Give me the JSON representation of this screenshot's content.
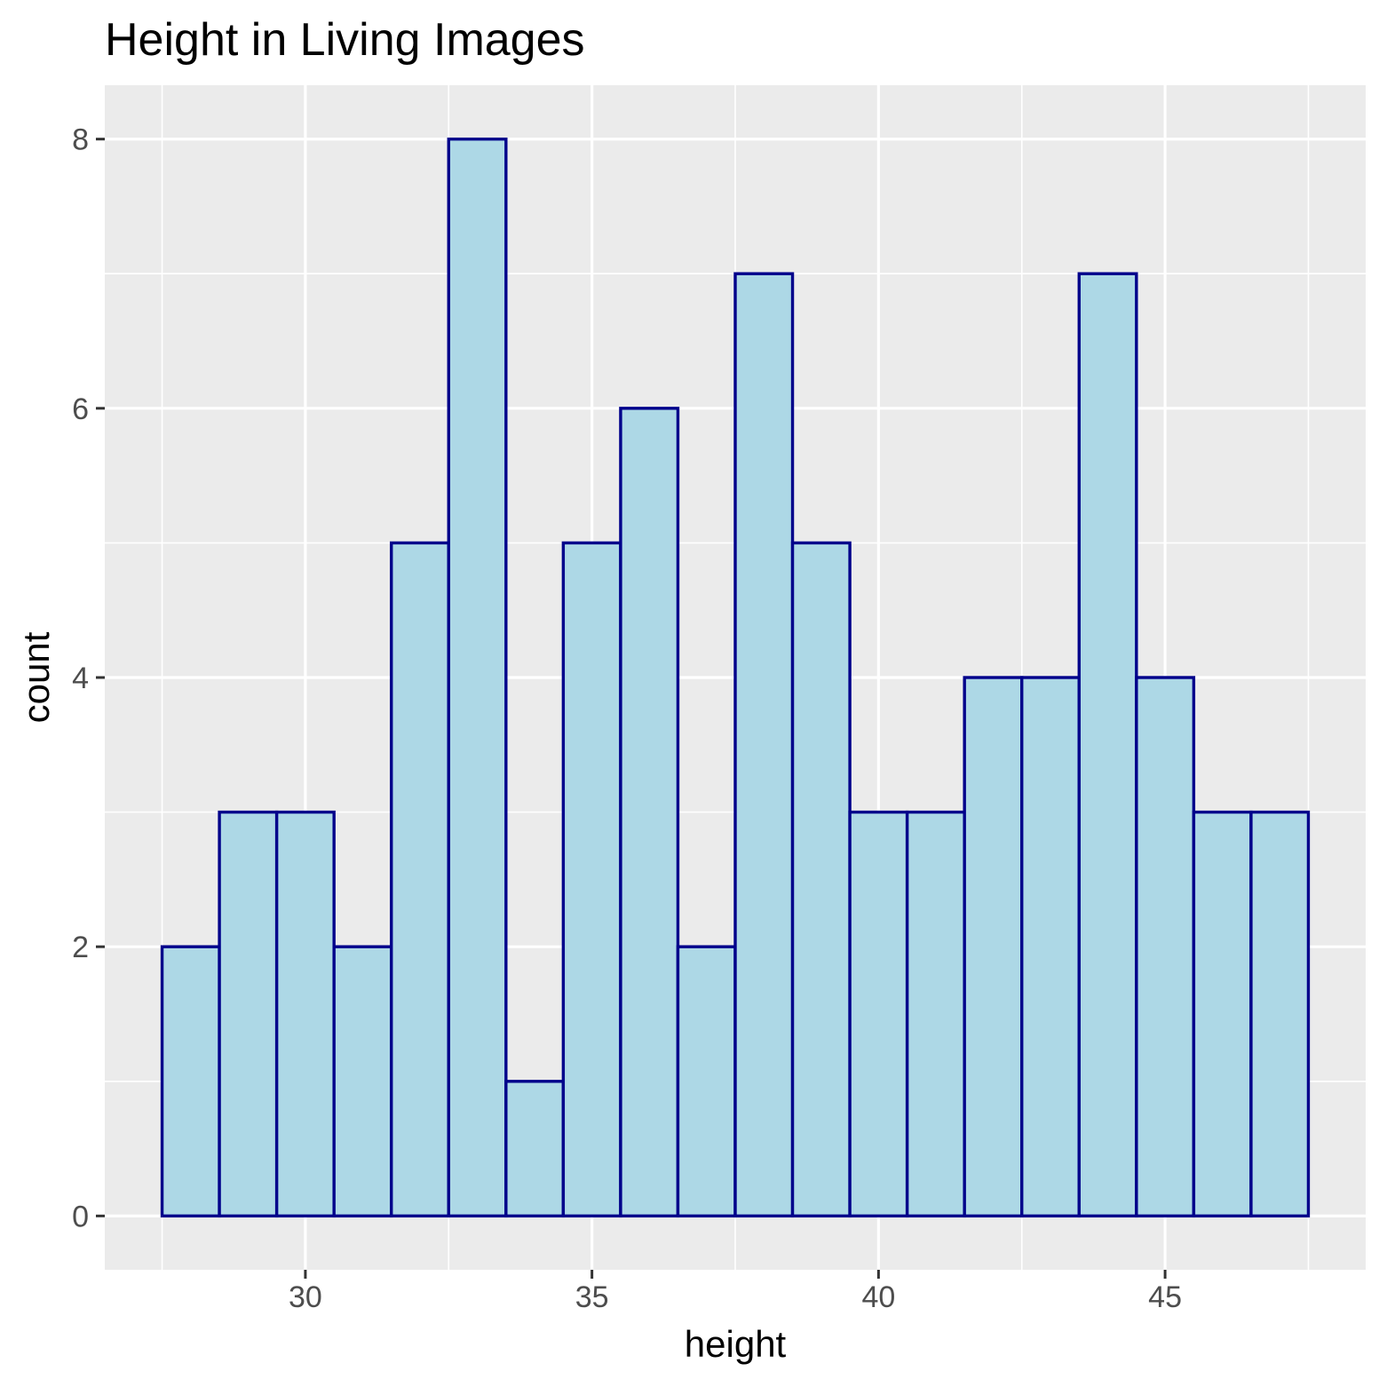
{
  "chart_data": {
    "type": "bar",
    "title": "Height in Living Images",
    "xlabel": "height",
    "ylabel": "count",
    "bin_width": 1,
    "bins": [
      {
        "center": 28,
        "count": 2
      },
      {
        "center": 29,
        "count": 3
      },
      {
        "center": 30,
        "count": 3
      },
      {
        "center": 31,
        "count": 2
      },
      {
        "center": 32,
        "count": 5
      },
      {
        "center": 33,
        "count": 8
      },
      {
        "center": 34,
        "count": 1
      },
      {
        "center": 35,
        "count": 5
      },
      {
        "center": 36,
        "count": 6
      },
      {
        "center": 37,
        "count": 2
      },
      {
        "center": 38,
        "count": 7
      },
      {
        "center": 39,
        "count": 5
      },
      {
        "center": 40,
        "count": 3
      },
      {
        "center": 41,
        "count": 3
      },
      {
        "center": 42,
        "count": 4
      },
      {
        "center": 43,
        "count": 4
      },
      {
        "center": 44,
        "count": 7
      },
      {
        "center": 45,
        "count": 4
      },
      {
        "center": 46,
        "count": 3
      },
      {
        "center": 47,
        "count": 3
      }
    ],
    "xlim": [
      26.5,
      48.5
    ],
    "ylim": [
      -0.4,
      8.4
    ],
    "x_ticks": [
      {
        "value": 30,
        "label": "30"
      },
      {
        "value": 35,
        "label": "35"
      },
      {
        "value": 40,
        "label": "40"
      },
      {
        "value": 45,
        "label": "45"
      }
    ],
    "y_ticks": [
      {
        "value": 0,
        "label": "0"
      },
      {
        "value": 2,
        "label": "2"
      },
      {
        "value": 4,
        "label": "4"
      },
      {
        "value": 6,
        "label": "6"
      },
      {
        "value": 8,
        "label": "8"
      }
    ],
    "grid": true,
    "legend": "none",
    "colors": {
      "bar_fill": "#add8e6",
      "bar_outline": "#00008b",
      "panel_background": "#ebebeb",
      "grid": "#ffffff",
      "tick_label": "#4d4d4d",
      "tick_mark": "#333333"
    }
  }
}
